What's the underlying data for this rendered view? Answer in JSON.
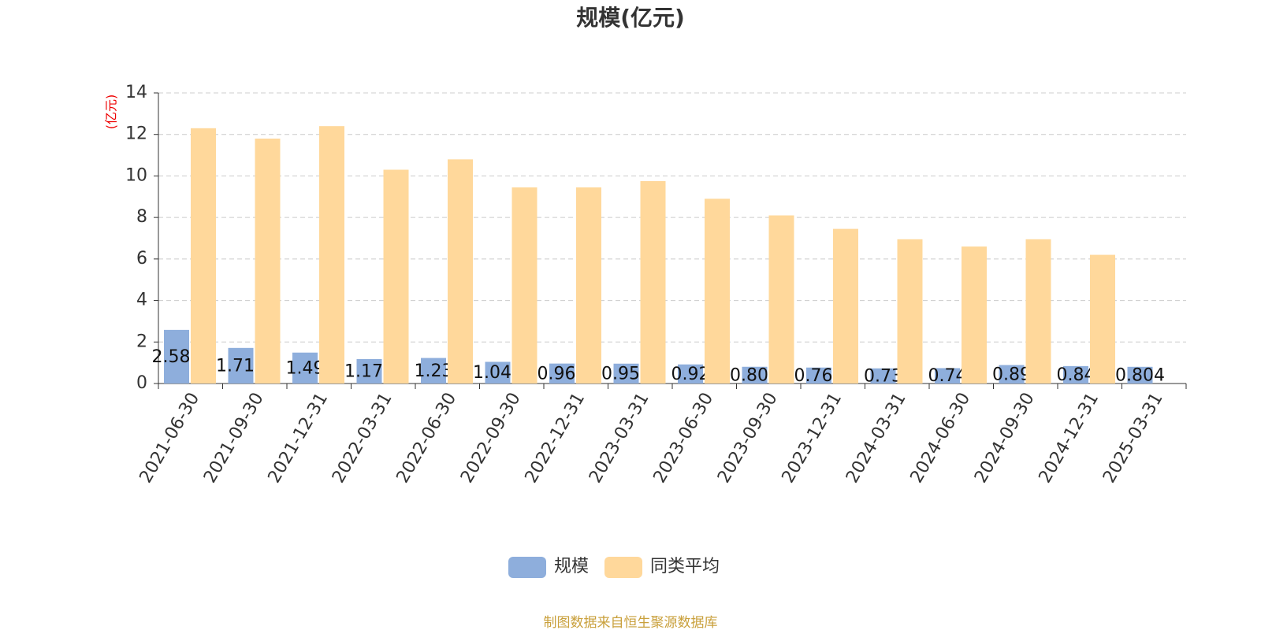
{
  "chart_data": {
    "type": "bar",
    "title": "规模(亿元)",
    "y_label": "(亿元)",
    "source": "制图数据来自恒生聚源数据库",
    "categories": [
      "2021-06-30",
      "2021-09-30",
      "2021-12-31",
      "2022-03-31",
      "2022-06-30",
      "2022-09-30",
      "2022-12-31",
      "2023-03-31",
      "2023-06-30",
      "2023-09-30",
      "2023-12-31",
      "2024-03-31",
      "2024-06-30",
      "2024-09-30",
      "2024-12-31",
      "2025-03-31"
    ],
    "series": [
      {
        "name": "规模",
        "color": "#8eaedc",
        "values": [
          2.584,
          1.714,
          1.49,
          1.176,
          1.23,
          1.044,
          0.962,
          0.957,
          0.92,
          0.806,
          0.769,
          0.73,
          0.74,
          0.89,
          0.84,
          0.804
        ]
      },
      {
        "name": "同类平均",
        "color": "#ffd89b",
        "values": [
          12.3,
          11.8,
          12.4,
          10.3,
          10.8,
          9.45,
          9.45,
          9.75,
          8.9,
          8.1,
          7.45,
          6.95,
          6.6,
          6.95,
          6.2,
          null
        ]
      }
    ],
    "ylim": [
      0,
      14
    ],
    "yticks": [
      0,
      2,
      4,
      6,
      8,
      10,
      12,
      14
    ],
    "grid": true,
    "legend": "bottom"
  }
}
